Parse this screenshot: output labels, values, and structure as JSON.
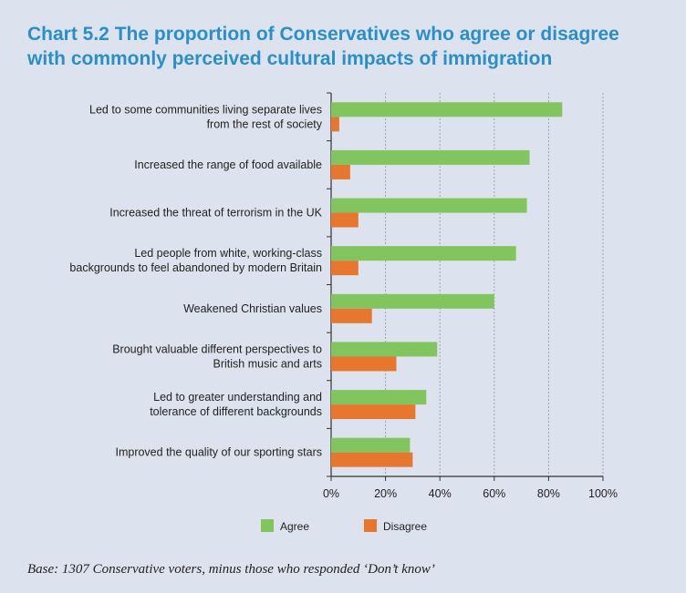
{
  "title_lines": [
    "Chart 5.2 The proportion of Conservatives who agree or disagree",
    "with commonly perceived cultural impacts of immigration"
  ],
  "footnote": "Base: 1307 Conservative voters, minus those who responded ‘Don’t know’",
  "colors": {
    "agree": "#82c55e",
    "disagree": "#e7772f",
    "title": "#2a8fc7",
    "background": "#dde3ee"
  },
  "chart_data": {
    "type": "bar",
    "orientation": "horizontal",
    "categories": [
      [
        "Led to some communities living separate lives",
        "from the rest of society"
      ],
      [
        "Increased the range of food available"
      ],
      [
        "Increased the threat of terrorism in the UK"
      ],
      [
        "Led people from white, working-class",
        "backgrounds to feel abandoned by modern Britain"
      ],
      [
        "Weakened Christian values"
      ],
      [
        "Brought valuable different perspectives to",
        "British music and arts"
      ],
      [
        "Led to greater understanding and",
        "tolerance of different backgrounds"
      ],
      [
        "Improved the quality of our sporting stars"
      ]
    ],
    "series": [
      {
        "name": "Agree",
        "values": [
          85,
          73,
          72,
          68,
          60,
          39,
          35,
          29
        ]
      },
      {
        "name": "Disagree",
        "values": [
          3,
          7,
          10,
          10,
          15,
          24,
          31,
          30
        ]
      }
    ],
    "xlim": [
      0,
      100
    ],
    "xticks": [
      "0%",
      "20%",
      "40%",
      "60%",
      "80%",
      "100%"
    ],
    "grid": true,
    "legend_position": "bottom"
  }
}
